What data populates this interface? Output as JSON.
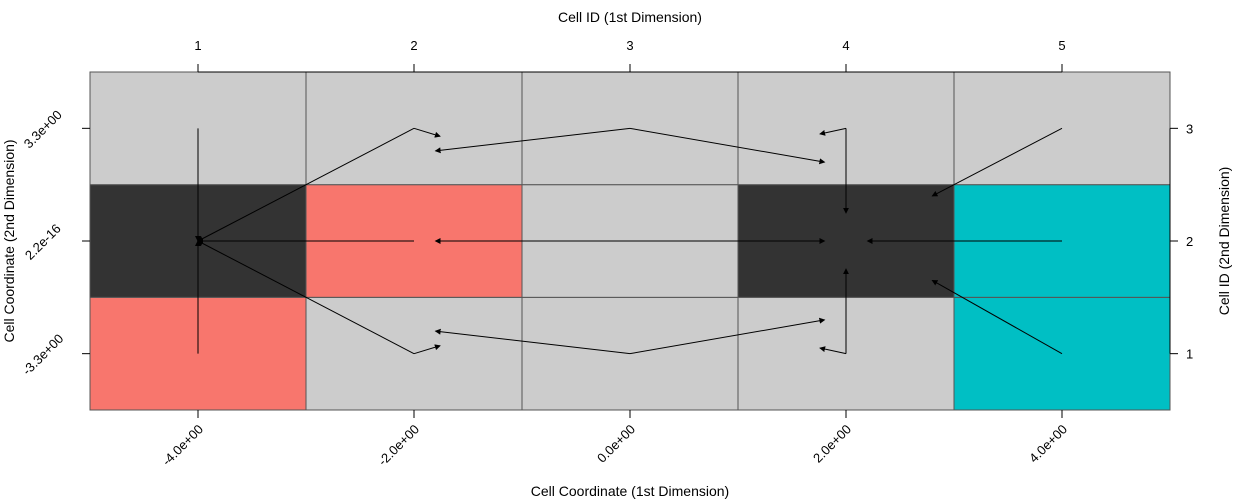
{
  "chart_data": {
    "type": "heatmap",
    "x_axis_bottom": {
      "title": "Cell Coordinate (1st Dimension)",
      "tick_labels": [
        "-4.0e+00",
        "-2.0e+00",
        "0.0e+00",
        "2.0e+00",
        "4.0e+00"
      ]
    },
    "x_axis_top": {
      "title": "Cell ID (1st Dimension)",
      "tick_labels": [
        "1",
        "2",
        "3",
        "4",
        "5"
      ]
    },
    "y_axis_left": {
      "title": "Cell Coordinate (2nd Dimension)",
      "tick_labels": [
        "-3.3e+00",
        "2.2e-16",
        "3.3e+00"
      ]
    },
    "y_axis_right": {
      "title": "Cell ID (2nd Dimension)",
      "tick_labels": [
        "1",
        "2",
        "3"
      ]
    },
    "cell_centers_x": [
      -4.0,
      -2.0,
      0.0,
      2.0,
      4.0
    ],
    "cell_centers_y": [
      -3.3,
      0.0,
      3.3
    ],
    "colors": {
      "grey": "#cccccc",
      "dark": "#333333",
      "red": "#f8766d",
      "cyan": "#00bfc4"
    },
    "cell_fill": [
      [
        "red",
        "grey",
        "grey",
        "grey",
        "cyan"
      ],
      [
        "dark",
        "red",
        "grey",
        "dark",
        "cyan"
      ],
      [
        "grey",
        "grey",
        "grey",
        "grey",
        "grey"
      ]
    ],
    "arrows": [
      {
        "from": [
          1,
          3
        ],
        "to": [
          1,
          2
        ]
      },
      {
        "from": [
          1,
          1
        ],
        "to": [
          1,
          2
        ]
      },
      {
        "from": [
          2,
          2
        ],
        "to": [
          1,
          2
        ]
      },
      {
        "from": [
          2,
          3
        ],
        "to": [
          1,
          2
        ]
      },
      {
        "from": [
          2,
          3
        ],
        "to": [
          2.12,
          2.93
        ]
      },
      {
        "from": [
          2,
          1
        ],
        "to": [
          1,
          2
        ]
      },
      {
        "from": [
          2,
          1
        ],
        "to": [
          2.12,
          1.07
        ]
      },
      {
        "from": [
          3,
          2
        ],
        "to": [
          3.9,
          2
        ]
      },
      {
        "from": [
          3,
          2
        ],
        "to": [
          2.1,
          2
        ]
      },
      {
        "from": [
          3,
          3
        ],
        "to": [
          3.9,
          2.7
        ]
      },
      {
        "from": [
          3,
          3
        ],
        "to": [
          2.1,
          2.8
        ]
      },
      {
        "from": [
          3,
          1
        ],
        "to": [
          3.9,
          1.3
        ]
      },
      {
        "from": [
          3,
          1
        ],
        "to": [
          2.1,
          1.2
        ]
      },
      {
        "from": [
          4,
          3
        ],
        "to": [
          4,
          2.25
        ]
      },
      {
        "from": [
          4,
          3
        ],
        "to": [
          3.88,
          2.95
        ]
      },
      {
        "from": [
          4,
          1
        ],
        "to": [
          4,
          1.75
        ]
      },
      {
        "from": [
          4,
          1
        ],
        "to": [
          3.88,
          1.05
        ]
      },
      {
        "from": [
          5,
          2
        ],
        "to": [
          4.1,
          2
        ]
      },
      {
        "from": [
          5,
          3
        ],
        "to": [
          4.4,
          2.4
        ]
      },
      {
        "from": [
          5,
          1
        ],
        "to": [
          4.4,
          1.65
        ]
      }
    ]
  }
}
